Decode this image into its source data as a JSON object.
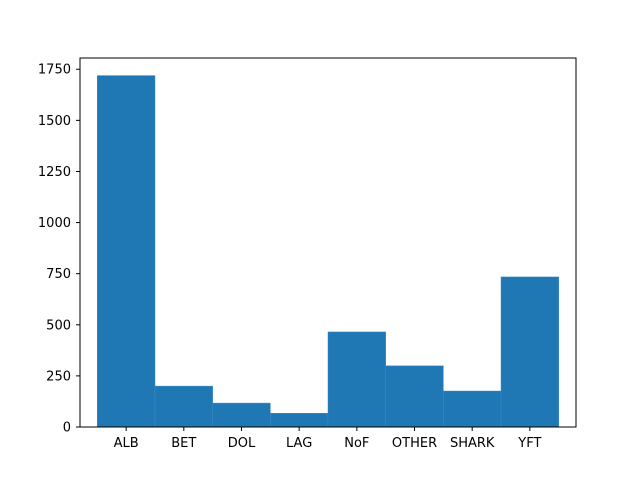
{
  "chart_data": {
    "type": "bar",
    "title": "",
    "xlabel": "",
    "ylabel": "",
    "categories": [
      "ALB",
      "BET",
      "DOL",
      "LAG",
      "NoF",
      "OTHER",
      "SHARK",
      "YFT"
    ],
    "values": [
      1719,
      200,
      117,
      67,
      465,
      299,
      176,
      734
    ],
    "ylim": [
      0,
      1805
    ],
    "yticks": [
      0,
      250,
      500,
      750,
      1000,
      1250,
      1500,
      1750
    ],
    "bar_color": "#1f77b4",
    "grid": false,
    "legend": "none"
  }
}
